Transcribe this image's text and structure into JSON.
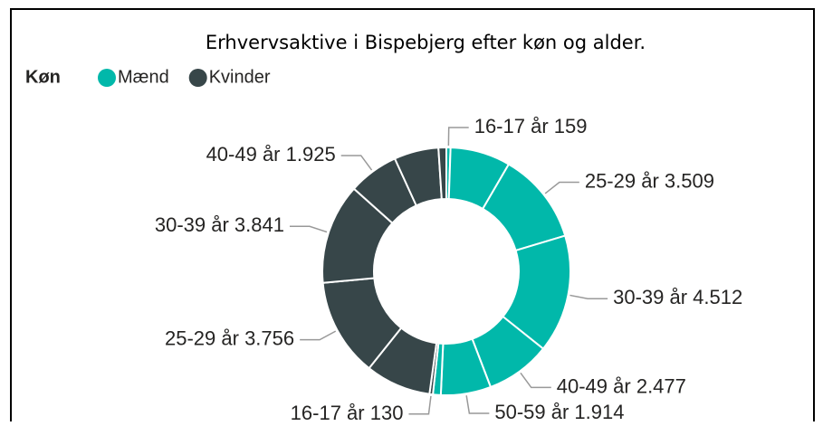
{
  "chart_data": {
    "type": "donut",
    "title": "Erhvervsaktive i Bispebjerg efter køn og alder.",
    "legend_title": "Køn",
    "series": [
      {
        "name": "Mænd",
        "color": "#01b8aa",
        "categories": [
          "16-17 år",
          null,
          "25-29 år",
          "30-39 år",
          "40-49 år",
          "50-59 år",
          null
        ],
        "values": [
          159,
          2300,
          3509,
          4512,
          2477,
          1914,
          300
        ],
        "value_labels": [
          "159",
          null,
          "3.509",
          "4.512",
          "2.477",
          "1.914",
          null
        ]
      },
      {
        "name": "Kvinder",
        "color": "#374649",
        "categories": [
          "16-17 år",
          null,
          "25-29 år",
          "30-39 år",
          "40-49 år",
          null,
          null
        ],
        "values": [
          130,
          2500,
          3756,
          3841,
          1925,
          1700,
          300
        ],
        "value_labels": [
          "130",
          null,
          "3.756",
          "3.841",
          "1.925",
          null,
          null
        ]
      }
    ]
  }
}
